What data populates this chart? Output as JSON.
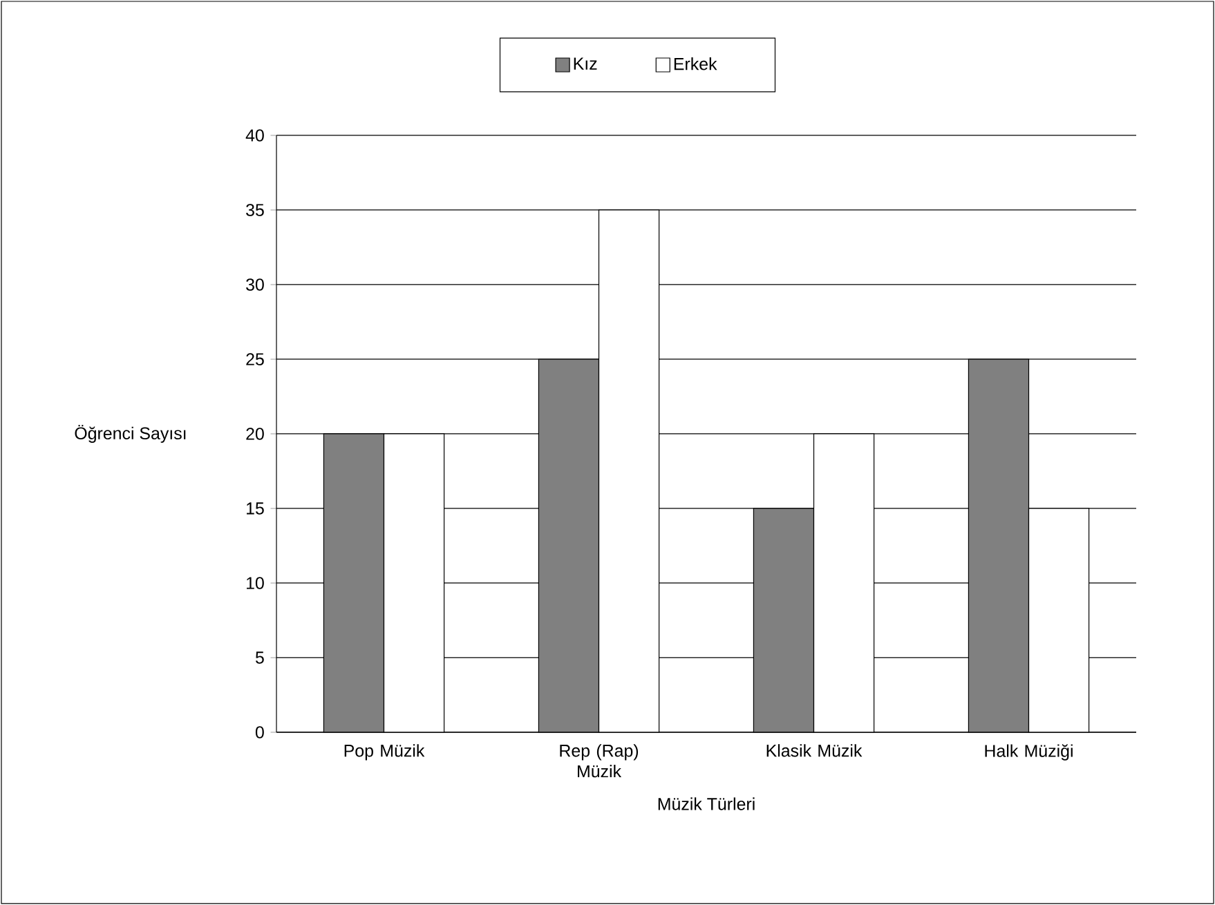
{
  "chart_data": {
    "type": "bar",
    "xlabel": "Müzik Türleri",
    "ylabel": "Öğrenci Sayısı",
    "categories": [
      "Pop Müzik",
      "Rep (Rap) Müzik",
      "Klasik Müzik",
      "Halk Müziği"
    ],
    "series": [
      {
        "name": "Kız",
        "color": "#808080",
        "values": [
          20,
          25,
          15,
          25
        ]
      },
      {
        "name": "Erkek",
        "color": "#ffffff",
        "values": [
          20,
          35,
          20,
          15
        ]
      }
    ],
    "ylim": [
      0,
      40
    ],
    "yticks": [
      0,
      5,
      10,
      15,
      20,
      25,
      30,
      35,
      40
    ],
    "grid": "y",
    "legend": "top"
  }
}
